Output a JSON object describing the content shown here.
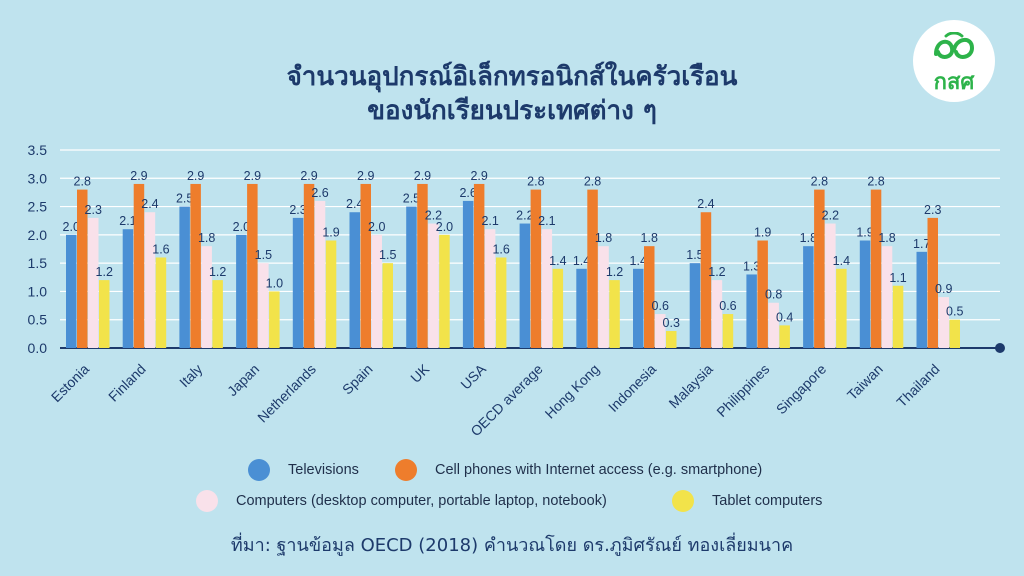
{
  "title_line1": "จำนวนอุปกรณ์อิเล็กทรอนิกส์ในครัวเรือน",
  "title_line2": "ของนักเรียนประเทศต่าง ๆ",
  "logo_text": "กสศ",
  "source_text": "ที่มา: ฐานข้อมูล OECD (2018) คำนวณโดย ดร.ภูมิศรัณย์ ทองเลี่ยมนาค",
  "colors": {
    "background": "#bfe3ee",
    "televisions": "#4a8fd4",
    "cell_phones": "#ee7d2c",
    "computers": "#f9e1ea",
    "tablets": "#f2e34a",
    "axis": "#1d3a6b",
    "logo_green": "#2db34a"
  },
  "chart_data": {
    "type": "bar",
    "title": "จำนวนอุปกรณ์อิเล็กทรอนิกส์ในครัวเรือน ของนักเรียนประเทศต่าง ๆ",
    "xlabel": "",
    "ylabel": "",
    "ylim": [
      0,
      3.5
    ],
    "yticks": [
      "0.0",
      "0.5",
      "1.0",
      "1.5",
      "2.0",
      "2.5",
      "3.0",
      "3.5"
    ],
    "grid": true,
    "legend_position": "bottom",
    "categories": [
      "Estonia",
      "Finland",
      "Italy",
      "Japan",
      "Netherlands",
      "Spain",
      "UK",
      "USA",
      "OECD average",
      "Hong Kong",
      "Indonesia",
      "Malaysia",
      "Philippines",
      "Singapore",
      "Taiwan",
      "Thailand"
    ],
    "series": [
      {
        "name": "Televisions",
        "color": "#4a8fd4",
        "values": [
          2.0,
          2.1,
          2.5,
          2.0,
          2.3,
          2.4,
          2.5,
          2.6,
          2.2,
          1.4,
          1.4,
          1.5,
          1.3,
          1.8,
          1.9,
          1.7
        ]
      },
      {
        "name": "Cell phones with Internet access (e.g. smartphone)",
        "color": "#ee7d2c",
        "values": [
          2.8,
          2.9,
          2.9,
          2.9,
          2.9,
          2.9,
          2.9,
          2.9,
          2.8,
          2.8,
          1.8,
          2.4,
          1.9,
          2.8,
          2.8,
          2.3
        ]
      },
      {
        "name": "Computers (desktop computer, portable laptop, notebook)",
        "color": "#f9e1ea",
        "values": [
          2.3,
          2.4,
          1.8,
          1.5,
          2.6,
          2.0,
          2.2,
          2.1,
          2.1,
          1.8,
          0.6,
          1.2,
          0.8,
          2.2,
          1.8,
          0.9
        ]
      },
      {
        "name": "Tablet computers",
        "color": "#f2e34a",
        "values": [
          1.2,
          1.6,
          1.2,
          1.0,
          1.9,
          1.5,
          2.0,
          1.6,
          1.4,
          1.2,
          0.3,
          0.6,
          0.4,
          1.4,
          1.1,
          0.5
        ]
      }
    ]
  }
}
